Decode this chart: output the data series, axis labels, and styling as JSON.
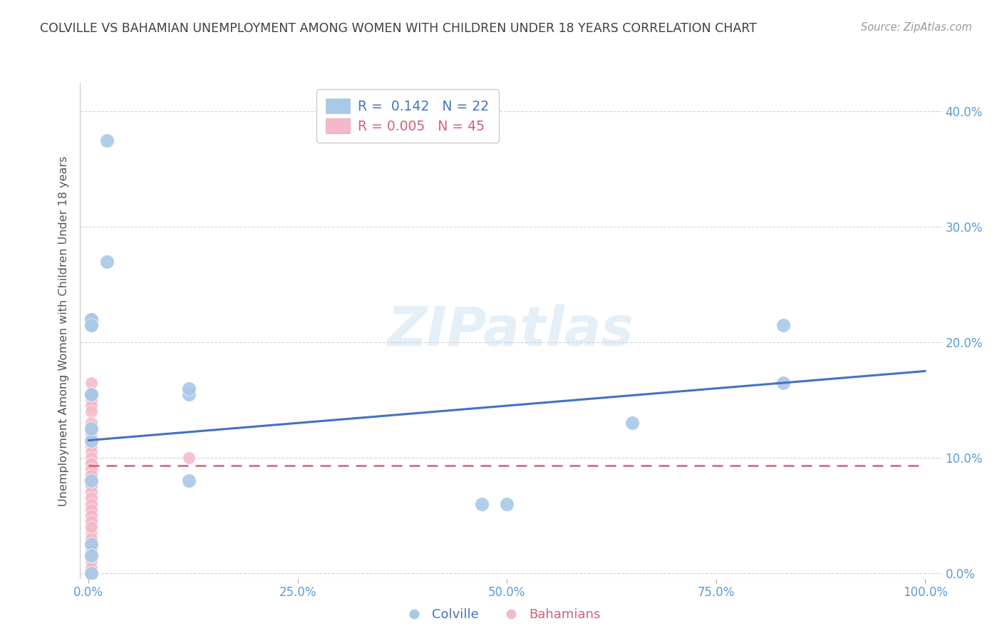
{
  "title": "COLVILLE VS BAHAMIAN UNEMPLOYMENT AMONG WOMEN WITH CHILDREN UNDER 18 YEARS CORRELATION CHART",
  "source": "Source: ZipAtlas.com",
  "ylabel": "Unemployment Among Women with Children Under 18 years",
  "colville_R": 0.142,
  "colville_N": 22,
  "bahamian_R": 0.005,
  "bahamian_N": 45,
  "colville_color": "#a8c8e8",
  "bahamian_color": "#f5b8c8",
  "colville_line_color": "#4472c4",
  "bahamian_line_color": "#d4607a",
  "background_color": "#ffffff",
  "grid_color": "#c8c8c8",
  "title_color": "#404040",
  "tick_label_color": "#5b9bd5",
  "ylabel_color": "#555555",
  "colville_x": [
    0.022,
    0.022,
    0.003,
    0.003,
    0.003,
    0.003,
    0.003,
    0.003,
    0.003,
    0.003,
    0.003,
    0.003,
    0.12,
    0.12,
    0.12,
    0.47,
    0.5,
    0.65,
    0.83,
    0.83,
    0.003,
    0.003
  ],
  "colville_y": [
    0.375,
    0.27,
    0.22,
    0.215,
    0.22,
    0.215,
    0.155,
    0.155,
    0.115,
    0.125,
    0.08,
    0.025,
    0.155,
    0.16,
    0.08,
    0.06,
    0.06,
    0.13,
    0.165,
    0.215,
    0.015,
    0.0
  ],
  "bahamian_x": [
    0.003,
    0.003,
    0.003,
    0.003,
    0.003,
    0.003,
    0.003,
    0.003,
    0.003,
    0.003,
    0.003,
    0.003,
    0.003,
    0.003,
    0.003,
    0.003,
    0.003,
    0.003,
    0.003,
    0.003,
    0.003,
    0.003,
    0.003,
    0.003,
    0.003,
    0.003,
    0.003,
    0.003,
    0.003,
    0.003,
    0.003,
    0.003,
    0.003,
    0.003,
    0.003,
    0.003,
    0.003,
    0.003,
    0.003,
    0.003,
    0.003,
    0.003,
    0.003,
    0.003,
    0.12
  ],
  "bahamian_y": [
    0.165,
    0.155,
    0.15,
    0.145,
    0.14,
    0.13,
    0.125,
    0.12,
    0.115,
    0.11,
    0.105,
    0.1,
    0.095,
    0.09,
    0.085,
    0.08,
    0.075,
    0.07,
    0.065,
    0.06,
    0.055,
    0.05,
    0.045,
    0.04,
    0.035,
    0.03,
    0.025,
    0.02,
    0.015,
    0.01,
    0.005,
    0.0,
    0.095,
    0.09,
    0.085,
    0.08,
    0.075,
    0.07,
    0.065,
    0.06,
    0.055,
    0.05,
    0.045,
    0.04,
    0.1
  ],
  "yticks": [
    0.0,
    0.1,
    0.2,
    0.3,
    0.4
  ],
  "ytick_labels": [
    "0.0%",
    "10.0%",
    "20.0%",
    "30.0%",
    "40.0%"
  ],
  "xticks": [
    0.0,
    0.25,
    0.5,
    0.75,
    1.0
  ],
  "xtick_labels": [
    "0.0%",
    "25.0%",
    "50.0%",
    "75.0%",
    "100.0%"
  ],
  "xlim": [
    -0.01,
    1.02
  ],
  "ylim": [
    -0.005,
    0.425
  ],
  "colville_trend_x": [
    0.0,
    1.0
  ],
  "colville_trend_y": [
    0.115,
    0.175
  ],
  "bahamian_trend_y": [
    0.093,
    0.093
  ]
}
